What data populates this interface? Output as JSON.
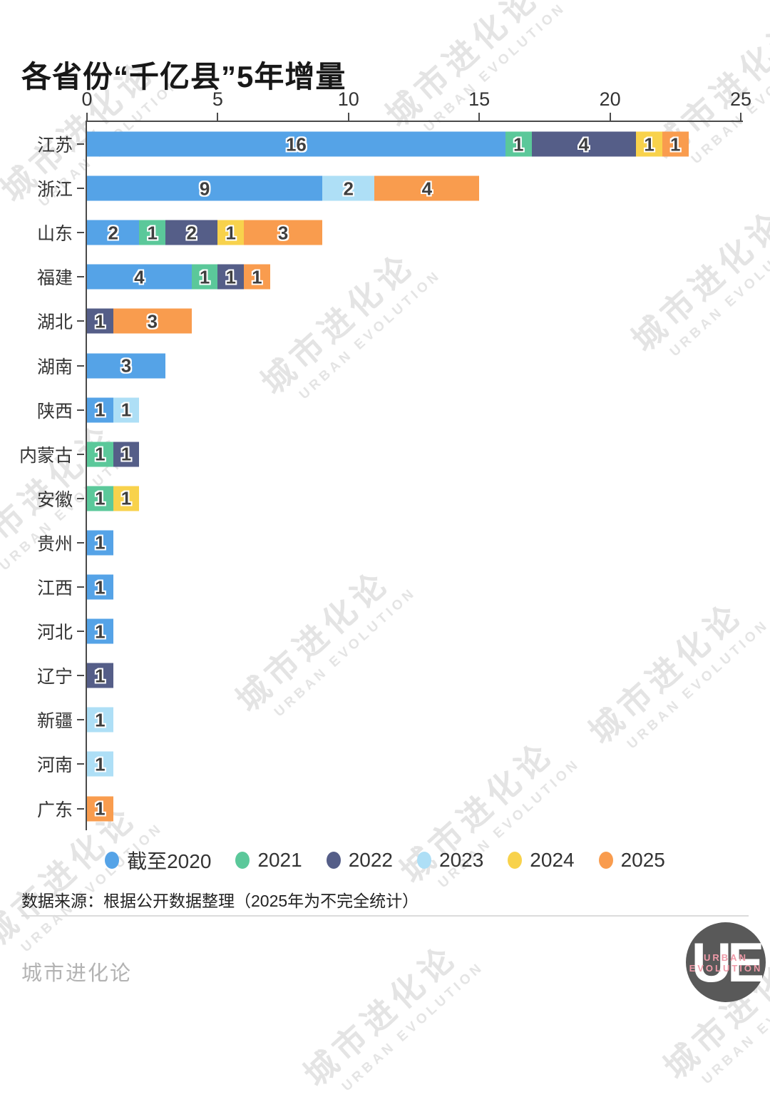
{
  "title": "各省份“千亿县”5年增量",
  "chart_data": {
    "type": "bar",
    "orientation": "horizontal-stacked",
    "categories": [
      "江苏",
      "浙江",
      "山东",
      "福建",
      "湖北",
      "湖南",
      "陕西",
      "内蒙古",
      "安徽",
      "贵州",
      "江西",
      "河北",
      "辽宁",
      "新疆",
      "河南",
      "广东"
    ],
    "series": [
      {
        "name": "截至2020",
        "color": "#55A3E7",
        "values": [
          16,
          9,
          2,
          4,
          0,
          3,
          1,
          0,
          0,
          1,
          1,
          1,
          0,
          0,
          0,
          0
        ]
      },
      {
        "name": "2021",
        "color": "#5BC89A",
        "values": [
          1,
          0,
          1,
          1,
          0,
          0,
          0,
          1,
          1,
          0,
          0,
          0,
          0,
          0,
          0,
          0
        ]
      },
      {
        "name": "2022",
        "color": "#555E88",
        "values": [
          4,
          0,
          2,
          1,
          1,
          0,
          0,
          1,
          0,
          0,
          0,
          0,
          1,
          0,
          0,
          0
        ]
      },
      {
        "name": "2023",
        "color": "#AEDFF6",
        "values": [
          0,
          2,
          0,
          0,
          0,
          0,
          1,
          0,
          0,
          0,
          0,
          0,
          0,
          1,
          1,
          0
        ]
      },
      {
        "name": "2024",
        "color": "#F8D24C",
        "values": [
          1,
          0,
          1,
          0,
          0,
          0,
          0,
          0,
          1,
          0,
          0,
          0,
          0,
          0,
          0,
          0
        ]
      },
      {
        "name": "2025",
        "color": "#F99C4E",
        "values": [
          1,
          4,
          3,
          1,
          3,
          0,
          0,
          0,
          0,
          0,
          0,
          0,
          0,
          0,
          0,
          1
        ]
      }
    ],
    "totals": [
      23,
      15,
      9,
      7,
      4,
      3,
      2,
      2,
      2,
      1,
      1,
      1,
      1,
      1,
      1,
      1
    ],
    "x_ticks": [
      0,
      5,
      10,
      15,
      20,
      25
    ],
    "xlim": [
      0,
      25
    ],
    "grid": false,
    "legend_position": "bottom",
    "value_labels": "shown inside each segment"
  },
  "source_note": "数据来源：根据公开数据整理（2025年为不完全统计）",
  "footer": {
    "brand": "城市进化论",
    "logo_initials": "UE",
    "logo_line1": "URBAN",
    "logo_line2": "EVOLUTION"
  },
  "watermark": {
    "cn": "城市进化论",
    "en": "URBAN EVOLUTION"
  }
}
